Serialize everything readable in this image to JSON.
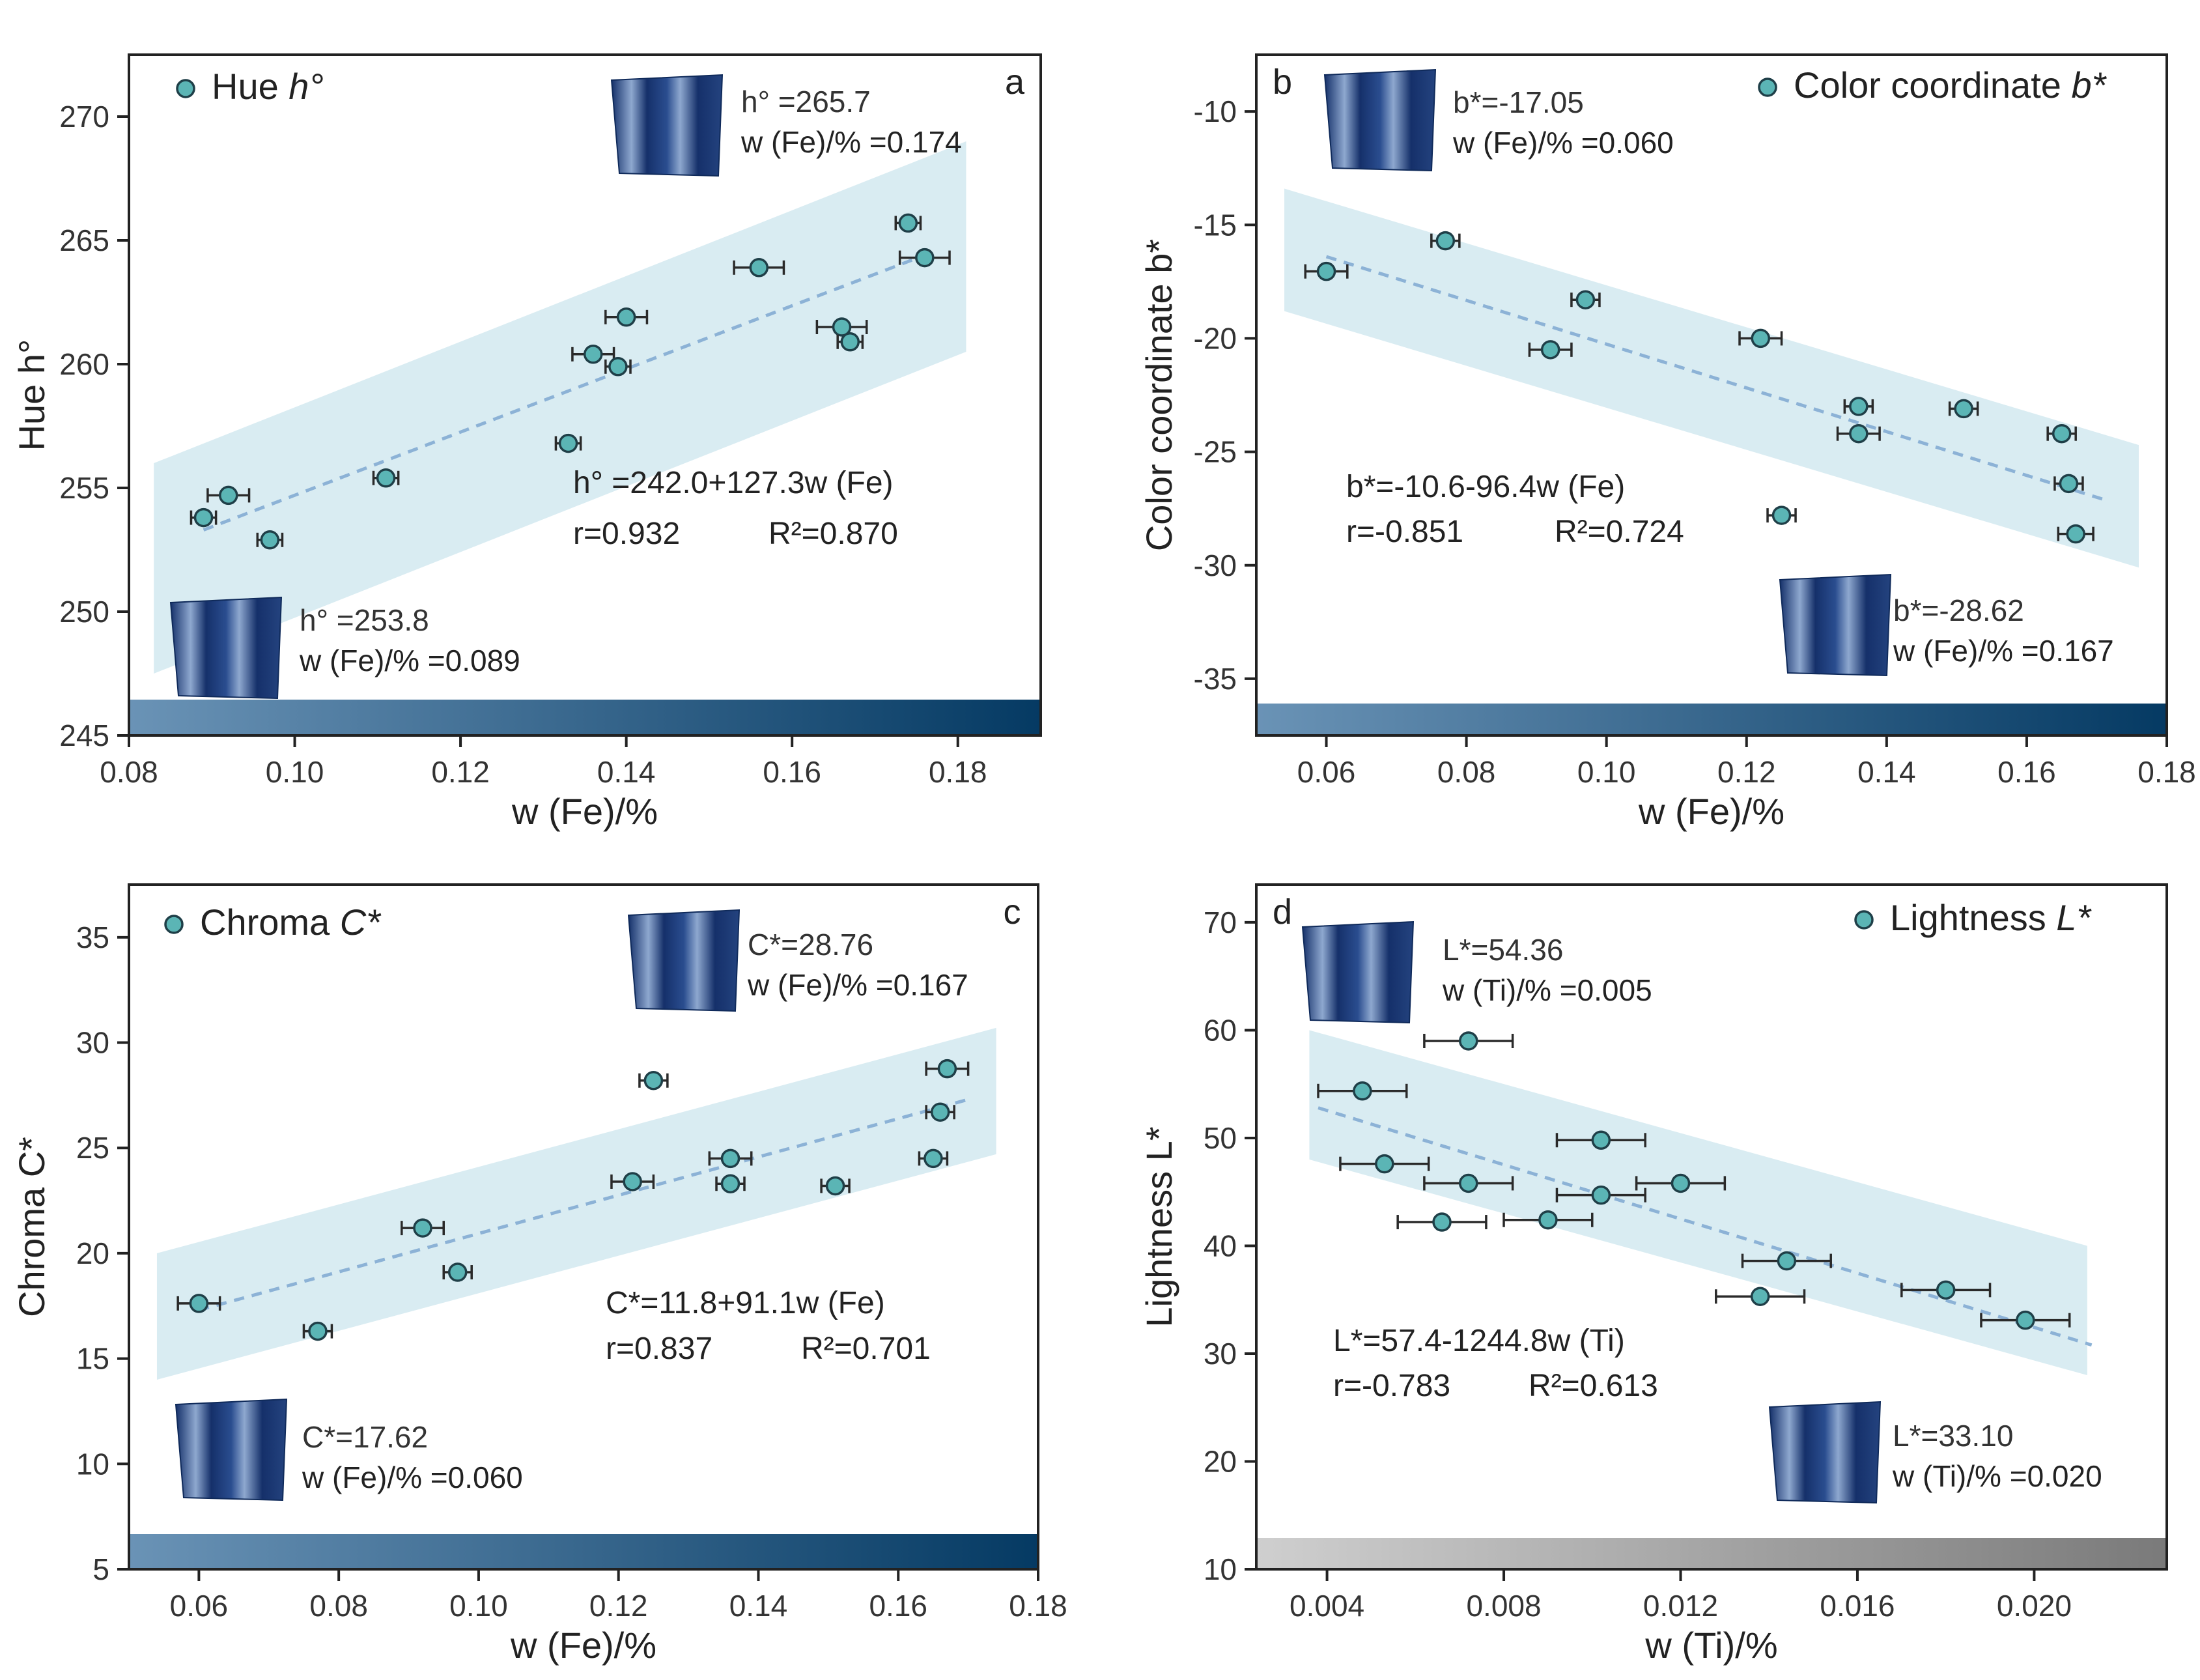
{
  "chart_data": [
    {
      "type": "scatter",
      "panel_label": "a",
      "legend": {
        "marker_label": "Hue ",
        "symbol": "h°"
      },
      "xlabel": "w (Fe)/%",
      "ylabel": "Hue h°",
      "xlim": [
        0.08,
        0.19
      ],
      "ylim": [
        245,
        272.5
      ],
      "xticks": [
        "0.08",
        "0.10",
        "0.12",
        "0.14",
        "0.16",
        "0.18"
      ],
      "yticks": [
        "245",
        "250",
        "255",
        "260",
        "265",
        "270"
      ],
      "x": [
        0.089,
        0.092,
        0.097,
        0.111,
        0.133,
        0.136,
        0.139,
        0.14,
        0.156,
        0.166,
        0.167,
        0.174,
        0.176
      ],
      "y": [
        253.8,
        254.7,
        252.9,
        255.4,
        256.8,
        260.4,
        259.9,
        261.9,
        263.9,
        261.5,
        260.9,
        265.7,
        264.3
      ],
      "xerr": [
        0.0015,
        0.0025,
        0.0015,
        0.0015,
        0.0015,
        0.0025,
        0.0015,
        0.0025,
        0.003,
        0.003,
        0.0015,
        0.0015,
        0.003
      ],
      "fit": {
        "x": [
          0.089,
          0.176
        ],
        "y": [
          253.3,
          264.4
        ]
      },
      "band": [
        [
          0.083,
          256.0
        ],
        [
          0.181,
          269.0
        ],
        [
          0.181,
          260.5
        ],
        [
          0.083,
          247.5
        ]
      ],
      "colorbar": "blue",
      "equation": "h°  =242.0+127.3w (Fe)",
      "r_text": "r=0.932",
      "r2_text": "R²=0.870",
      "samples": [
        {
          "label": "h°  =265.7",
          "fe": "w (Fe)/% =0.174"
        },
        {
          "label": "h°  =253.8",
          "fe": "w (Fe)/% =0.089"
        }
      ]
    },
    {
      "type": "scatter",
      "panel_label": "b",
      "legend": {
        "marker_label": "Color coordinate ",
        "symbol": "b*"
      },
      "xlabel": "w (Fe)/%",
      "ylabel": "Color coordinate b*",
      "xlim": [
        0.05,
        0.18
      ],
      "ylim": [
        -37.5,
        -7.5
      ],
      "xticks": [
        "0.06",
        "0.08",
        "0.10",
        "0.12",
        "0.14",
        "0.16",
        "0.18"
      ],
      "yticks": [
        "-35",
        "-30",
        "-25",
        "-20",
        "-15",
        "-10"
      ],
      "x": [
        0.06,
        0.077,
        0.092,
        0.097,
        0.122,
        0.125,
        0.136,
        0.136,
        0.151,
        0.165,
        0.166,
        0.167
      ],
      "y": [
        -17.05,
        -15.7,
        -20.5,
        -18.3,
        -20.0,
        -27.8,
        -23.0,
        -24.2,
        -23.1,
        -24.2,
        -26.4,
        -28.62
      ],
      "xerr": [
        0.003,
        0.002,
        0.003,
        0.002,
        0.003,
        0.002,
        0.002,
        0.003,
        0.002,
        0.002,
        0.002,
        0.0025
      ],
      "fit": {
        "x": [
          0.06,
          0.171
        ],
        "y": [
          -16.4,
          -27.1
        ]
      },
      "band": [
        [
          0.054,
          -13.4
        ],
        [
          0.176,
          -24.7
        ],
        [
          0.176,
          -30.1
        ],
        [
          0.054,
          -18.8
        ]
      ],
      "colorbar": "blue",
      "equation": "b*=-10.6-96.4w (Fe)",
      "r_text": "r=-0.851",
      "r2_text": "R²=0.724",
      "samples": [
        {
          "label": "b*=-17.05",
          "fe": "w (Fe)/% =0.060"
        },
        {
          "label": "b*=-28.62",
          "fe": "w (Fe)/% =0.167"
        }
      ]
    },
    {
      "type": "scatter",
      "panel_label": "c",
      "legend": {
        "marker_label": "Chroma ",
        "symbol": "C*"
      },
      "xlabel": "w (Fe)/%",
      "ylabel": "Chroma C*",
      "xlim": [
        0.05,
        0.18
      ],
      "ylim": [
        5,
        37.5
      ],
      "xticks": [
        "0.06",
        "0.08",
        "0.10",
        "0.12",
        "0.14",
        "0.16",
        "0.18"
      ],
      "yticks": [
        "5",
        "10",
        "15",
        "20",
        "25",
        "30",
        "35"
      ],
      "x": [
        0.06,
        0.077,
        0.092,
        0.097,
        0.122,
        0.125,
        0.136,
        0.136,
        0.151,
        0.165,
        0.166,
        0.167
      ],
      "y": [
        17.62,
        16.3,
        21.2,
        19.1,
        23.4,
        28.2,
        24.5,
        23.3,
        23.2,
        24.5,
        26.7,
        28.76
      ],
      "xerr": [
        0.003,
        0.002,
        0.003,
        0.002,
        0.003,
        0.002,
        0.003,
        0.002,
        0.002,
        0.002,
        0.002,
        0.003
      ],
      "fit": {
        "x": [
          0.06,
          0.17
        ],
        "y": [
          17.3,
          27.3
        ]
      },
      "band": [
        [
          0.054,
          20.0
        ],
        [
          0.174,
          30.7
        ],
        [
          0.174,
          24.7
        ],
        [
          0.054,
          14.0
        ]
      ],
      "colorbar": "blue",
      "equation": "C*=11.8+91.1w (Fe)",
      "r_text": "r=0.837",
      "r2_text": "R²=0.701",
      "samples": [
        {
          "label": "C*=28.76",
          "fe": "w (Fe)/% =0.167"
        },
        {
          "label": "C*=17.62",
          "fe": "w (Fe)/% =0.060"
        }
      ]
    },
    {
      "type": "scatter",
      "panel_label": "d",
      "legend": {
        "marker_label": "Lightness ",
        "symbol": "L*"
      },
      "xlabel": "w (Ti)/%",
      "ylabel": "Lightness L*",
      "xlim": [
        0.0024,
        0.023
      ],
      "ylim": [
        10,
        73.5
      ],
      "xticks": [
        "0.004",
        "0.008",
        "0.012",
        "0.016",
        "0.020"
      ],
      "yticks": [
        "10",
        "20",
        "30",
        "40",
        "50",
        "60",
        "70"
      ],
      "x": [
        0.0048,
        0.0053,
        0.0066,
        0.0072,
        0.0072,
        0.009,
        0.0102,
        0.0102,
        0.012,
        0.0138,
        0.0144,
        0.018,
        0.0198
      ],
      "y": [
        54.36,
        47.6,
        42.2,
        59.0,
        45.8,
        42.4,
        49.8,
        44.7,
        45.8,
        35.3,
        38.6,
        35.9,
        33.1
      ],
      "xerr": [
        0.001,
        0.001,
        0.001,
        0.001,
        0.001,
        0.001,
        0.001,
        0.001,
        0.001,
        0.001,
        0.001,
        0.001,
        0.001
      ],
      "fit": {
        "x": [
          0.0038,
          0.0213
        ],
        "y": [
          52.8,
          30.8
        ]
      },
      "band": [
        [
          0.0036,
          60.0
        ],
        [
          0.0212,
          40.0
        ],
        [
          0.0212,
          28.0
        ],
        [
          0.0036,
          48.0
        ]
      ],
      "colorbar": "gray",
      "equation": "L*=57.4-1244.8w (Ti)",
      "r_text": "r=-0.783",
      "r2_text": "R²=0.613",
      "samples": [
        {
          "label": "L*=54.36",
          "fe": "w (Ti)/% =0.005"
        },
        {
          "label": "L*=33.10",
          "fe": "w (Ti)/% =0.020"
        }
      ]
    }
  ],
  "colors": {
    "marker_fill": "#5bb5b5",
    "marker_stroke": "#1f3f48",
    "fit_line": "#8cb2d6",
    "band": "#d9ecf2",
    "colorbar_blue_start": "#6a93b6",
    "colorbar_blue_end": "#053a63",
    "colorbar_gray_start": "#cfcfcf",
    "colorbar_gray_end": "#7a7a7a",
    "specimen_light": "#8ea8cf",
    "specimen_dark": "#15306a"
  }
}
